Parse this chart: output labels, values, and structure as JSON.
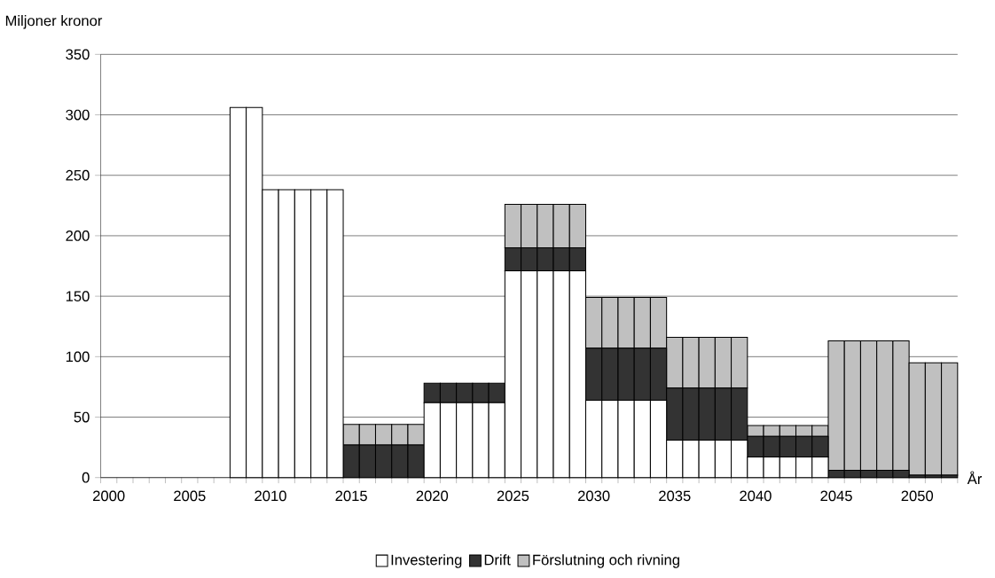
{
  "chart_data": {
    "type": "bar",
    "stacked": true,
    "xlabel": "År",
    "ylabel": "Miljoner kronor",
    "categories": [
      "2000",
      null,
      null,
      null,
      null,
      "2005",
      null,
      null,
      null,
      null,
      "2010",
      null,
      null,
      null,
      null,
      "2015",
      null,
      null,
      null,
      null,
      "2020",
      null,
      null,
      null,
      null,
      "2025",
      null,
      null,
      null,
      null,
      "2030",
      null,
      null,
      null,
      null,
      "2035",
      null,
      null,
      null,
      null,
      "2040",
      null,
      null,
      null,
      null,
      "2045",
      null,
      null,
      null,
      null,
      "2050",
      null,
      null
    ],
    "series": [
      {
        "name": "Investering",
        "color": "#ffffff",
        "values": [
          0,
          0,
          0,
          0,
          0,
          0,
          0,
          0,
          306,
          306,
          238,
          238,
          238,
          238,
          238,
          0,
          0,
          0,
          0,
          0,
          62,
          62,
          62,
          62,
          62,
          171,
          171,
          171,
          171,
          171,
          64,
          64,
          64,
          64,
          64,
          31,
          31,
          31,
          31,
          31,
          17,
          17,
          17,
          17,
          17,
          0,
          0,
          0,
          0,
          0,
          0,
          0,
          0
        ]
      },
      {
        "name": "Drift",
        "color": "#333333",
        "values": [
          0,
          0,
          0,
          0,
          0,
          0,
          0,
          0,
          0,
          0,
          0,
          0,
          0,
          0,
          0,
          27,
          27,
          27,
          27,
          27,
          16,
          16,
          16,
          16,
          16,
          19,
          19,
          19,
          19,
          19,
          43,
          43,
          43,
          43,
          43,
          43,
          43,
          43,
          43,
          43,
          17,
          17,
          17,
          17,
          17,
          6,
          6,
          6,
          6,
          6,
          2,
          2,
          2
        ]
      },
      {
        "name": "Förslutning och rivning",
        "color": "#c0c0c0",
        "values": [
          0,
          0,
          0,
          0,
          0,
          0,
          0,
          0,
          0,
          0,
          0,
          0,
          0,
          0,
          0,
          17,
          17,
          17,
          17,
          17,
          0,
          0,
          0,
          0,
          0,
          36,
          36,
          36,
          36,
          36,
          42,
          42,
          42,
          42,
          42,
          42,
          42,
          42,
          42,
          42,
          9,
          9,
          9,
          9,
          9,
          107,
          107,
          107,
          107,
          107,
          93,
          93,
          93
        ]
      }
    ],
    "ylim": [
      0,
      350
    ],
    "yticks": [
      0,
      50,
      100,
      150,
      200,
      250,
      300,
      350
    ],
    "grid": "y",
    "legend": "bottom"
  }
}
